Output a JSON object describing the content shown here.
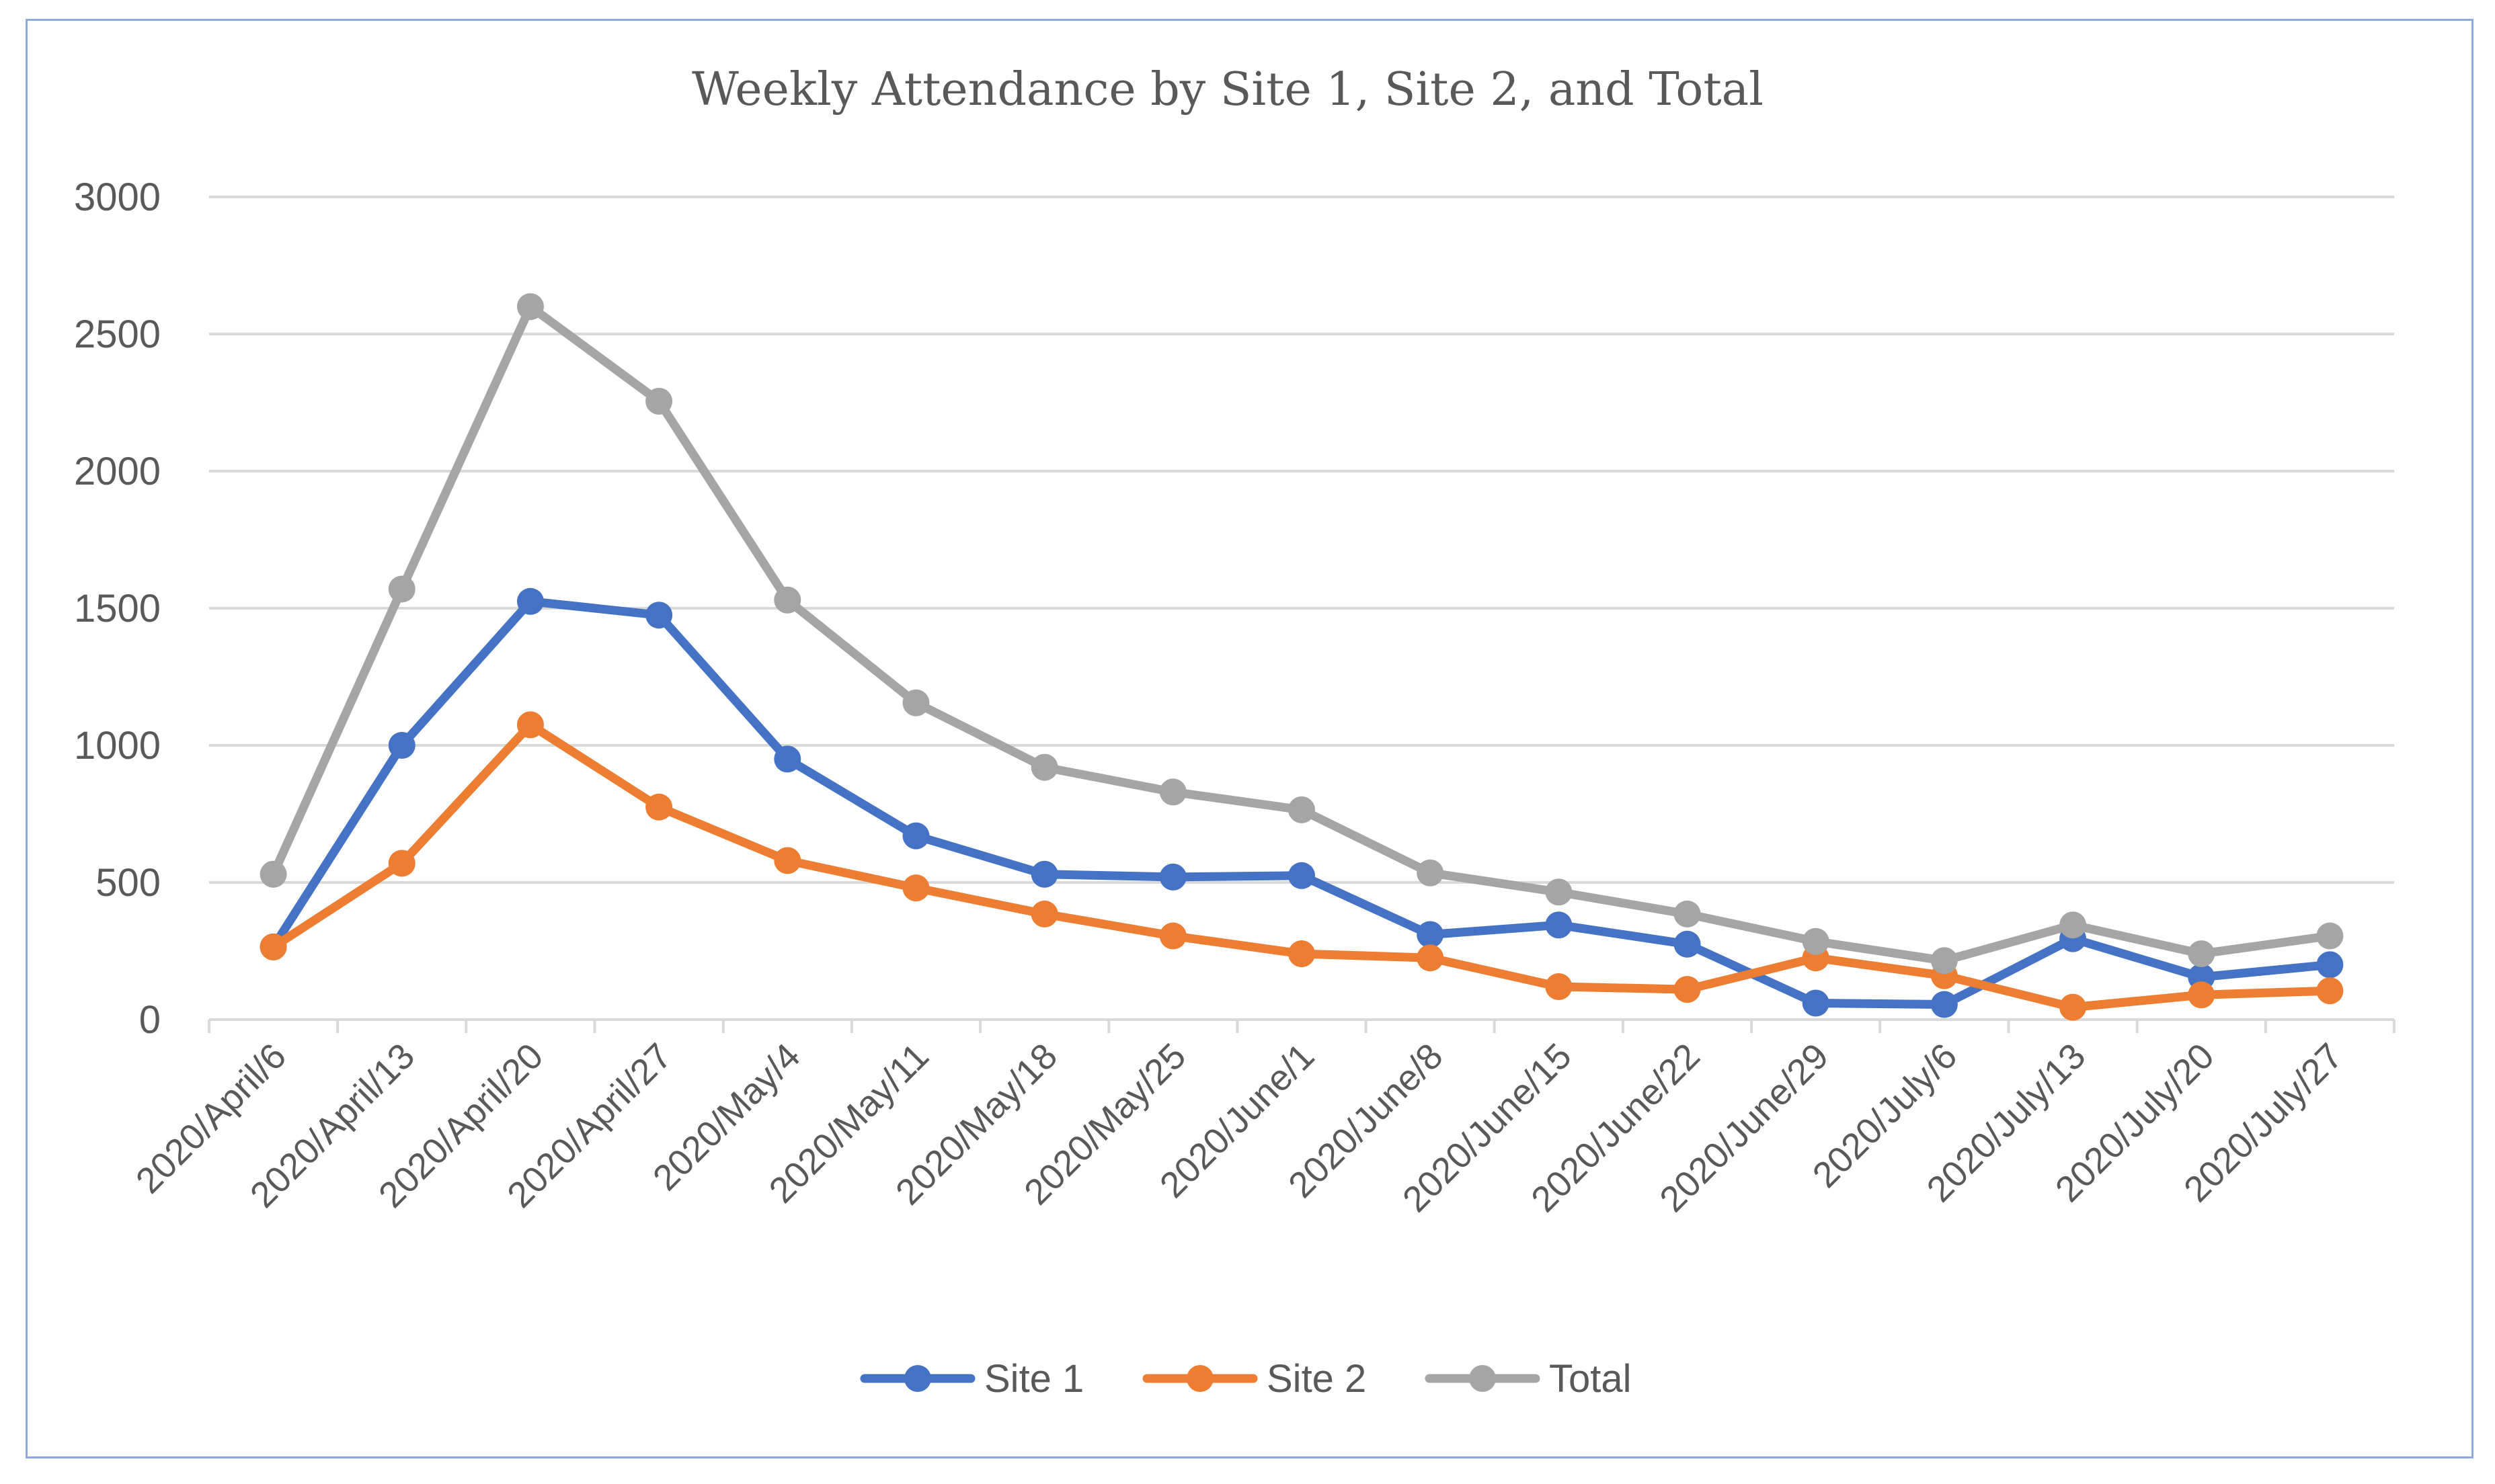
{
  "chart_data": {
    "type": "line",
    "title": "Weekly Attendance by Site 1, Site 2, and Total",
    "xlabel": "",
    "ylabel": "",
    "ylim": [
      0,
      3000
    ],
    "yticks": [
      0,
      500,
      1000,
      1500,
      2000,
      2500,
      3000
    ],
    "grid": true,
    "legend_position": "bottom",
    "categories": [
      "2020/April/6",
      "2020/April/13",
      "2020/April/20",
      "2020/April/27",
      "2020/May/4",
      "2020/May/11",
      "2020/May/18",
      "2020/May/25",
      "2020/June/1",
      "2020/June/8",
      "2020/June/15",
      "2020/June/22",
      "2020/June/29",
      "2020/July/6",
      "2020/July/13",
      "2020/July/20",
      "2020/July/27"
    ],
    "series": [
      {
        "name": "Site 1",
        "color": "#4472c4",
        "values": [
          265,
          1000,
          1525,
          1475,
          950,
          670,
          530,
          520,
          525,
          310,
          345,
          275,
          60,
          55,
          295,
          155,
          200
        ]
      },
      {
        "name": "Site 2",
        "color": "#ed7d31",
        "values": [
          265,
          570,
          1075,
          775,
          580,
          480,
          385,
          305,
          240,
          225,
          120,
          110,
          225,
          160,
          45,
          90,
          105
        ]
      },
      {
        "name": "Total",
        "color": "#a5a5a5",
        "values": [
          530,
          1570,
          2600,
          2255,
          1530,
          1155,
          920,
          830,
          765,
          535,
          465,
          385,
          285,
          215,
          345,
          240,
          305
        ]
      }
    ]
  }
}
